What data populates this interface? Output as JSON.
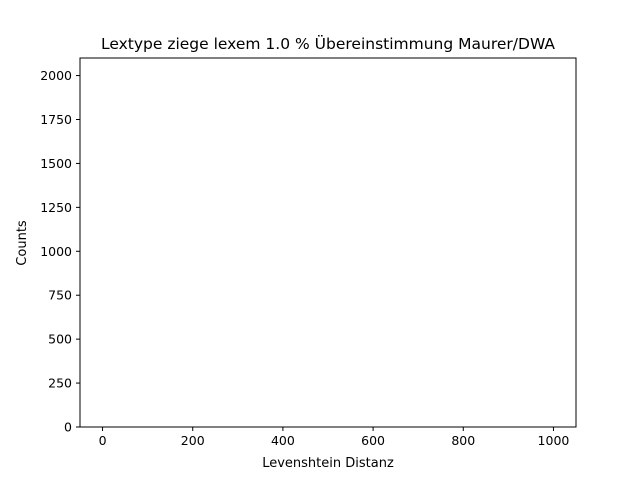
{
  "chart_data": {
    "type": "bar",
    "title": "Lextype ziege lexem 1.0 % Übereinstimmung Maurer/DWA",
    "xlabel": "Levenshtein Distanz",
    "ylabel": "Counts",
    "xlim": [
      -50,
      1050
    ],
    "ylim": [
      0,
      2100
    ],
    "x_ticks": [
      0,
      200,
      400,
      600,
      800,
      1000
    ],
    "y_ticks": [
      0,
      250,
      500,
      750,
      1000,
      1250,
      1500,
      1750,
      2000
    ],
    "x_tick_labels": [
      "0",
      "200",
      "400",
      "600",
      "800",
      "1000"
    ],
    "y_tick_labels": [
      "0",
      "250",
      "500",
      "750",
      "1000",
      "1250",
      "1500",
      "1750",
      "2000"
    ],
    "grid": false,
    "legend": "none",
    "series": [
      {
        "values": []
      }
    ]
  }
}
